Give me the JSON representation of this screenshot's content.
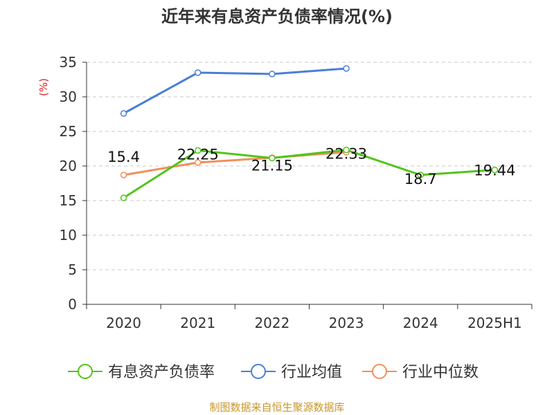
{
  "chart_data": {
    "type": "line",
    "title": "近年来有息资产负债率情况(%)",
    "ylabel": "(%)",
    "categories": [
      "2020",
      "2021",
      "2022",
      "2023",
      "2024",
      "2025H1"
    ],
    "ylim": [
      0,
      35
    ],
    "yticks": [
      0,
      5,
      10,
      15,
      20,
      25,
      30,
      35
    ],
    "grid": true,
    "legend_position": "bottom",
    "series": [
      {
        "name": "有息资产负债率",
        "color": "#52c41a",
        "values": [
          15.4,
          22.25,
          21.15,
          22.33,
          18.7,
          19.44
        ],
        "labels": [
          "15.4",
          "22.25",
          "21.15",
          "22.33",
          "18.7",
          "19.44"
        ]
      },
      {
        "name": "行业均值",
        "color": "#4a7fd6",
        "values": [
          27.6,
          33.5,
          33.3,
          34.1,
          null,
          null
        ]
      },
      {
        "name": "行业中位数",
        "color": "#f0905a",
        "values": [
          18.7,
          20.5,
          21.2,
          22.0,
          null,
          null
        ]
      }
    ]
  },
  "footer": {
    "source": "制图数据来自恒生聚源数据库"
  }
}
